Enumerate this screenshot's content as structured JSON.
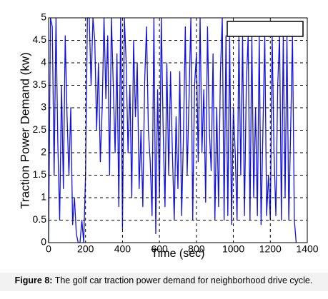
{
  "chart_data": {
    "type": "line",
    "y_label": "Traction Power Demand (kw)",
    "x_label": "Time (sec)",
    "caption_label": "Figure 8:",
    "caption": "The golf car traction power demand for neighborhood drive cycle.",
    "xlim": [
      0,
      1400
    ],
    "xticks": [
      0,
      200,
      400,
      600,
      800,
      1000,
      1200,
      1400
    ],
    "ylim": [
      0,
      5
    ],
    "yticks": [
      0,
      0.5,
      1,
      1.5,
      2,
      2.5,
      3,
      3.5,
      4,
      4.5,
      5
    ],
    "grid": true,
    "series": [
      {
        "color": "#1010ee",
        "x": [
          0,
          10,
          20,
          30,
          40,
          50,
          60,
          70,
          80,
          90,
          100,
          110,
          120,
          130,
          140,
          150,
          160,
          170,
          180,
          190,
          200,
          210,
          220,
          230,
          240,
          250,
          260,
          270,
          280,
          290,
          300,
          310,
          320,
          330,
          340,
          350,
          360,
          370,
          380,
          390,
          400,
          410,
          420,
          430,
          440,
          450,
          460,
          470,
          480,
          490,
          500,
          510,
          520,
          530,
          540,
          550,
          560,
          570,
          580,
          590,
          600,
          610,
          620,
          630,
          640,
          650,
          660,
          670,
          680,
          690,
          700,
          710,
          720,
          730,
          740,
          750,
          760,
          770,
          780,
          790,
          800,
          810,
          820,
          830,
          840,
          850,
          860,
          870,
          880,
          890,
          900,
          910,
          920,
          930,
          940,
          950,
          960,
          970,
          980,
          990,
          1000,
          1010,
          1020,
          1030,
          1040,
          1050,
          1060,
          1070,
          1080,
          1090,
          1100,
          1110,
          1120,
          1130,
          1140,
          1150,
          1160,
          1170,
          1180,
          1190,
          1200,
          1210,
          1220,
          1230,
          1240,
          1250,
          1260,
          1270,
          1280,
          1290,
          1300,
          1310,
          1320,
          1330,
          1340
        ],
        "values": [
          0,
          5,
          4.8,
          1.5,
          5,
          2.2,
          0.5,
          3.5,
          1.2,
          4.6,
          2.8,
          1.5,
          3,
          0.4,
          1,
          0.2,
          0,
          0,
          0.5,
          0,
          1.5,
          5,
          5,
          3.5,
          5,
          4.5,
          2.5,
          4,
          1.8,
          3,
          5,
          3.2,
          4.6,
          1.5,
          5,
          3.5,
          2,
          4.2,
          0.8,
          5,
          0.3,
          5,
          4,
          2,
          3.5,
          1,
          4.5,
          2.8,
          4,
          1.2,
          2.5,
          0.8,
          3.6,
          4.8,
          2.5,
          1.8,
          0.6,
          5,
          0.2,
          3.4,
          1,
          5,
          2.5,
          0.8,
          4,
          1.5,
          3.8,
          2,
          0.5,
          2.8,
          1.2,
          3.8,
          0.6,
          2.4,
          4.8,
          1.5,
          3.2,
          5,
          0.5,
          3.5,
          4.2,
          1.8,
          5,
          2,
          3.4,
          0.9,
          4.8,
          2.5,
          1.6,
          4.2,
          0.5,
          3,
          0.8,
          3.8,
          5,
          0.5,
          4.6,
          0.6,
          4.6,
          0.4,
          3,
          2,
          0.5,
          4.6,
          1.5,
          4.6,
          0.6,
          3.5,
          4.6,
          0.5,
          4.6,
          1,
          3,
          0.6,
          4.6,
          0.4,
          2.5,
          4.6,
          0.6,
          1.5,
          0.5,
          4.6,
          2,
          0.6,
          3.5,
          4.6,
          0.5,
          4.6,
          1,
          4.6,
          0.5,
          2.5,
          4.6,
          0.5,
          0
        ]
      }
    ]
  }
}
